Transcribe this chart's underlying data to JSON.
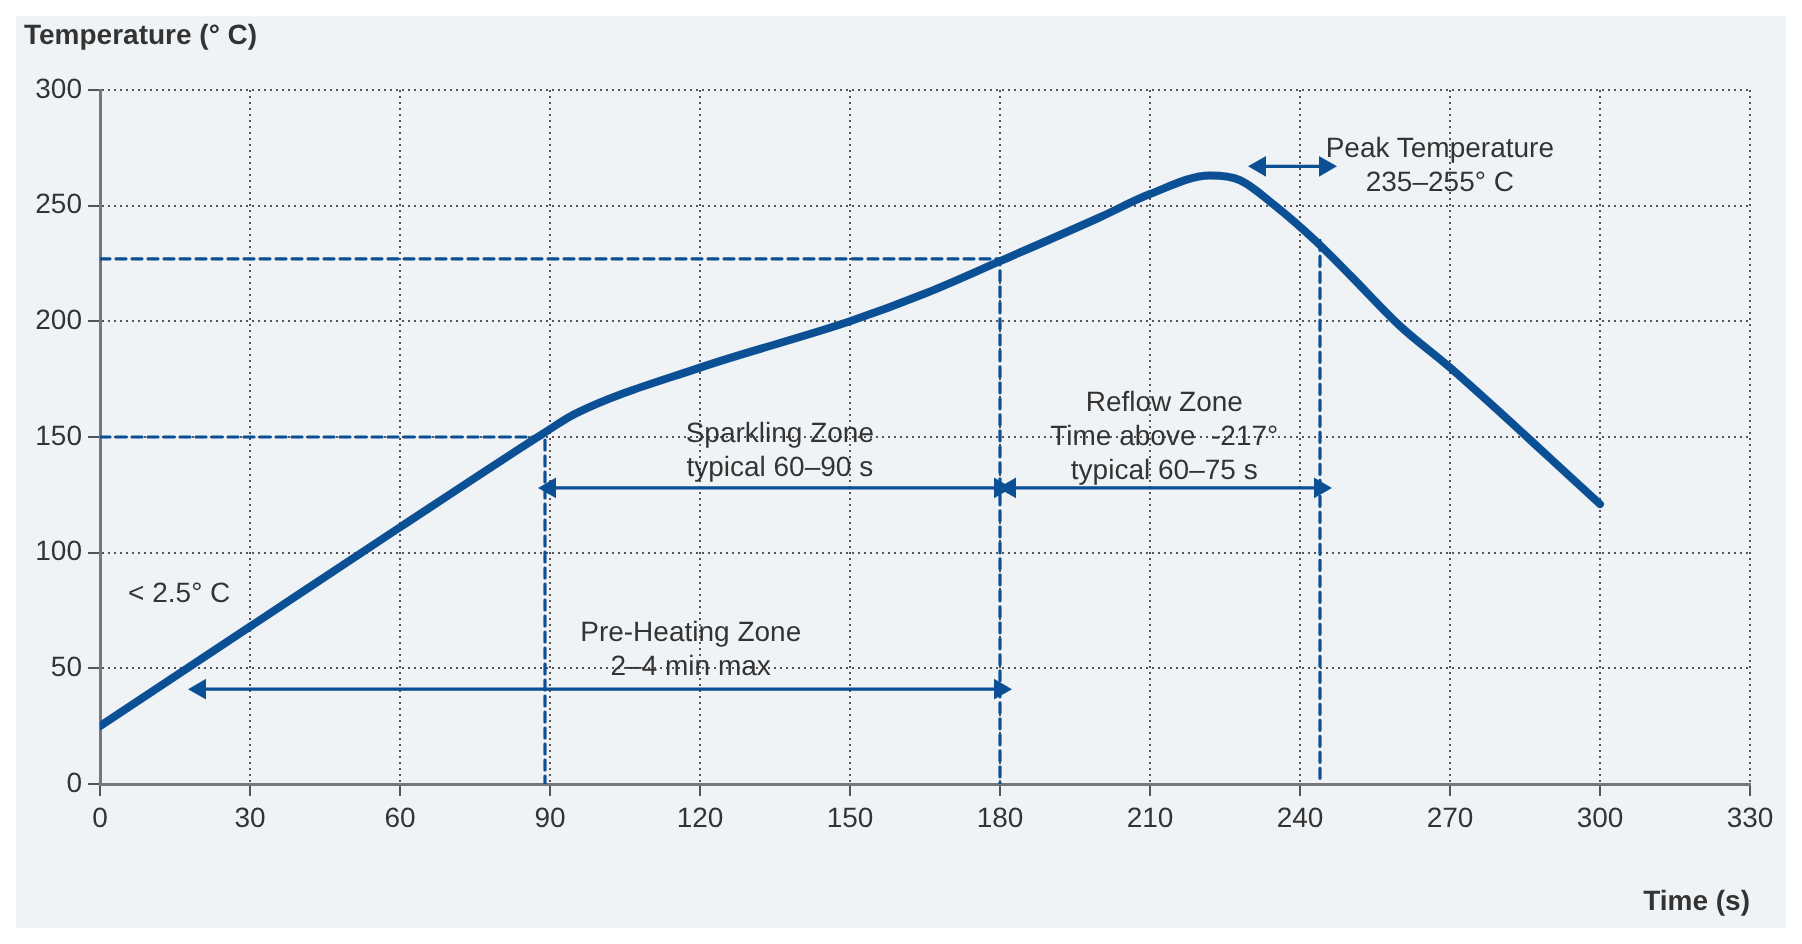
{
  "chart_data": {
    "type": "line",
    "ylabel": "Temperature (° C)",
    "xlabel": "Time (s)",
    "xlim": [
      0,
      330
    ],
    "ylim": [
      0,
      300
    ],
    "xticks": [
      0,
      30,
      60,
      90,
      120,
      150,
      180,
      210,
      240,
      270,
      300,
      330
    ],
    "yticks": [
      0,
      50,
      100,
      150,
      200,
      250,
      300
    ],
    "grid": true,
    "legend": false,
    "series": [
      {
        "color": "#0b4f94",
        "line_style": "solid",
        "marker": "none",
        "x": [
          0,
          30,
          60,
          89,
          95,
          120,
          150,
          165,
          180,
          200,
          210,
          222,
          228,
          235,
          243,
          250,
          260,
          270,
          300
        ],
        "values": [
          25,
          68,
          111,
          152,
          160,
          180,
          200,
          212,
          226,
          245,
          255,
          263,
          261,
          250,
          235,
          220,
          198,
          180,
          121
        ]
      },
      {
        "color": "#0b4f94",
        "line_style": "dashed",
        "marker": "none",
        "x": [
          0,
          180,
          180
        ],
        "values": [
          227,
          227,
          0
        ]
      },
      {
        "color": "#0b4f94",
        "line_style": "dashed",
        "marker": "none",
        "x": [
          0,
          89,
          89
        ],
        "values": [
          150,
          150,
          0
        ]
      },
      {
        "color": "#0b4f94",
        "line_style": "dashed",
        "marker": "none",
        "x": [
          244,
          244
        ],
        "values": [
          235,
          0
        ]
      },
      {
        "color": "#0b4f94",
        "line_style": "solid",
        "marker": "triangle",
        "x": [
          20,
          180
        ],
        "values": [
          41,
          41
        ]
      },
      {
        "color": "#0b4f94",
        "line_style": "solid",
        "marker": "triangle",
        "x": [
          90,
          180
        ],
        "values": [
          128,
          128
        ]
      },
      {
        "color": "#0b4f94",
        "line_style": "solid",
        "marker": "triangle",
        "x": [
          182,
          244
        ],
        "values": [
          128,
          128
        ]
      },
      {
        "color": "#0b4f94",
        "line_style": "solid",
        "marker": "triangle",
        "x": [
          232,
          245
        ],
        "values": [
          267,
          267
        ]
      }
    ],
    "annotations": [
      "< 2.5° C",
      "Pre-Heating Zone\n2–4 min max",
      "Sparkling Zone\ntypical 60–90 s",
      "Reflow Zone\nTime above  -217°\ntypical 60–75 s",
      "Peak Temperature\n235–255° C"
    ]
  }
}
